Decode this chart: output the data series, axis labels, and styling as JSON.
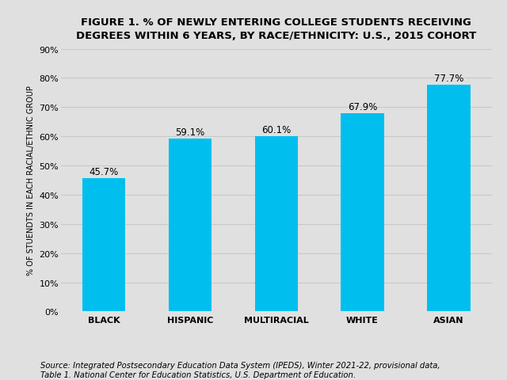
{
  "title": "FIGURE 1. % OF NEWLY ENTERING COLLEGE STUDENTS RECEIVING\nDEGREES WITHIN 6 YEARS, BY RACE/ETHNICITY: U.S., 2015 COHORT",
  "categories": [
    "BLACK",
    "HISPANIC",
    "MULTIRACIAL",
    "WHITE",
    "ASIAN"
  ],
  "values": [
    45.7,
    59.1,
    60.1,
    67.9,
    77.7
  ],
  "bar_color": "#00BFEF",
  "ylabel": "% OF STUENDTS IN EACH RACIAL/ETHNIC GROUP",
  "ylim": [
    0,
    90
  ],
  "yticks": [
    0,
    10,
    20,
    30,
    40,
    50,
    60,
    70,
    80,
    90
  ],
  "ytick_labels": [
    "0%",
    "10%",
    "20%",
    "30%",
    "40%",
    "50%",
    "60%",
    "70%",
    "80%",
    "90%"
  ],
  "background_color": "#e0e0e0",
  "plot_background_color": "#e0e0e0",
  "title_fontsize": 9.5,
  "label_fontsize": 8,
  "bar_label_fontsize": 8.5,
  "source_text": "Source: Integrated Postsecondary Education Data System (IPEDS), Winter 2021-22, provisional data,\nTable 1. National Center for Education Statistics, U.S. Department of Education.",
  "bar_width": 0.5,
  "grid_color": "#c8c8c8",
  "ylabel_fontsize": 7
}
